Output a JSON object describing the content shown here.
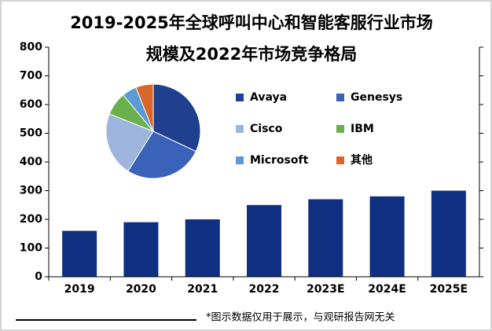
{
  "chart_data": [
    {
      "type": "bar",
      "title": [
        "2019-2025年全球呼叫中心和智能客服行业市场",
        "规模及2022年市场竞争格局"
      ],
      "note": "*图示数据仅用于展示，与观研报告网无关",
      "categories": [
        "2019",
        "2020",
        "2021",
        "2022",
        "2023E",
        "2024E",
        "2025E"
      ],
      "values": [
        160,
        190,
        200,
        250,
        270,
        280,
        300
      ],
      "color": "#0f2f80",
      "ylim": [
        0,
        800
      ],
      "yticks": [
        0,
        100,
        200,
        300,
        400,
        500,
        600,
        700,
        800
      ],
      "grid": false
    },
    {
      "type": "pie",
      "categories": [
        "Avaya",
        "Genesys",
        "Cisco",
        "IBM",
        "Microsoft",
        "其他"
      ],
      "values": [
        32,
        27,
        22,
        8,
        5,
        6
      ],
      "colors": [
        "#1f3f8f",
        "#3a62b8",
        "#9db4dc",
        "#6ab04c",
        "#5b9bd5",
        "#d9662a"
      ]
    }
  ]
}
